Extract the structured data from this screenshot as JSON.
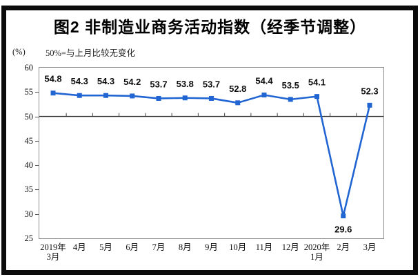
{
  "chart_data": {
    "type": "line",
    "title": "图2 非制造业商务活动指数（经季节调整）",
    "subtitle": "50%=与上月比较无变化",
    "unit_label": "(%)",
    "categories": [
      "2019年\n3月",
      "4月",
      "5月",
      "6月",
      "7月",
      "8月",
      "9月",
      "10月",
      "11月",
      "12月",
      "2020年\n1月",
      "2月",
      "3月"
    ],
    "values": [
      54.8,
      54.3,
      54.3,
      54.2,
      53.7,
      53.8,
      53.7,
      52.8,
      54.4,
      53.5,
      54.1,
      29.6,
      52.3
    ],
    "ylim": [
      25,
      60
    ],
    "ytick_step": 5,
    "reference_line": 50,
    "line_color": "#2165d2",
    "axis_color": "#8c8c8c",
    "grid": false,
    "legend": null,
    "marker": "square",
    "value_labels_shown": true
  }
}
